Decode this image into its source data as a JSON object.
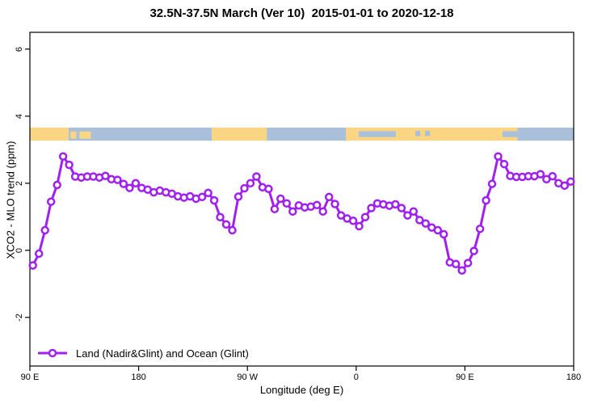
{
  "title": "32.5N-37.5N March (Ver 10)  2015-01-01 to 2020-12-18",
  "legend": {
    "label": "Land (Nadir&Glint) and Ocean (Glint)"
  },
  "colors": {
    "line": "#A020F0",
    "marker_fill": "#ffffff",
    "land": "#F9D584",
    "ocean": "#A9BFDA",
    "axis": "#000000"
  },
  "chart_data": {
    "type": "line",
    "title": "32.5N-37.5N March (Ver 10)  2015-01-01 to 2020-12-18",
    "xlabel": "Longitude (deg E)",
    "ylabel": "XCO2 - MLO trend (ppm)",
    "legend_position": "bottom-left",
    "grid": false,
    "axis": {
      "x_range": [
        90,
        540
      ],
      "y_range": [
        -3.45,
        6.5
      ],
      "x_ticks": [
        {
          "pos": 90,
          "label": "90 E"
        },
        {
          "pos": 180,
          "label": "180"
        },
        {
          "pos": 270,
          "label": "90 W"
        },
        {
          "pos": 360,
          "label": "0"
        },
        {
          "pos": 450,
          "label": "90 E"
        },
        {
          "pos": 540,
          "label": "180"
        }
      ],
      "y_ticks": [
        {
          "pos": -2,
          "label": "-2"
        },
        {
          "pos": 0,
          "label": "0"
        },
        {
          "pos": 2,
          "label": "2"
        },
        {
          "pos": 4,
          "label": "4"
        },
        {
          "pos": 6,
          "label": "6"
        }
      ]
    },
    "series": [
      {
        "name": "Land (Nadir&Glint) and Ocean (Glint)",
        "x_note": "longitude axis wraps: 90E..180..90W..0..90E..180 (values 90..540 plotted, >180 means wrapped)",
        "x": [
          92.5,
          97.5,
          102.5,
          107.5,
          112.5,
          117.5,
          122.5,
          127.5,
          132.5,
          137.5,
          142.5,
          147.5,
          152.5,
          157.5,
          162.5,
          167.5,
          172.5,
          177.5,
          182.5,
          187.5,
          192.5,
          197.5,
          202.5,
          207.5,
          212.5,
          217.5,
          222.5,
          227.5,
          232.5,
          237.5,
          242.5,
          247.5,
          252.5,
          257.5,
          262.5,
          267.5,
          272.5,
          277.5,
          282.5,
          287.5,
          292.5,
          297.5,
          302.5,
          307.5,
          312.5,
          317.5,
          322.5,
          327.5,
          332.5,
          337.5,
          342.5,
          347.5,
          352.5,
          357.5,
          362.5,
          367.5,
          372.5,
          377.5,
          382.5,
          387.5,
          392.5,
          397.5,
          402.5,
          407.5,
          412.5,
          417.5,
          422.5,
          427.5,
          432.5,
          437.5,
          442.5,
          447.5,
          452.5,
          457.5,
          462.5,
          467.5,
          472.5,
          477.5,
          482.5,
          487.5,
          492.5,
          497.5,
          502.5,
          507.5,
          512.5,
          517.5,
          522.5,
          527.5,
          532.5,
          537.5
        ],
        "values": [
          -0.45,
          -0.1,
          0.6,
          1.45,
          1.95,
          2.8,
          2.55,
          2.2,
          2.17,
          2.2,
          2.2,
          2.17,
          2.22,
          2.12,
          2.1,
          1.98,
          1.86,
          2.0,
          1.86,
          1.81,
          1.73,
          1.78,
          1.73,
          1.69,
          1.61,
          1.57,
          1.61,
          1.54,
          1.59,
          1.71,
          1.49,
          0.99,
          0.77,
          0.6,
          1.6,
          1.85,
          2.0,
          2.2,
          1.88,
          1.83,
          1.23,
          1.54,
          1.4,
          1.16,
          1.34,
          1.28,
          1.3,
          1.35,
          1.16,
          1.59,
          1.38,
          1.04,
          0.95,
          0.88,
          0.72,
          0.99,
          1.26,
          1.4,
          1.37,
          1.33,
          1.37,
          1.26,
          1.04,
          1.16,
          0.9,
          0.8,
          0.68,
          0.6,
          0.48,
          -0.36,
          -0.41,
          -0.6,
          -0.38,
          -0.02,
          0.64,
          1.49,
          1.98,
          2.8,
          2.57,
          2.22,
          2.19,
          2.19,
          2.21,
          2.21,
          2.27,
          2.12,
          2.21,
          2.0,
          1.93,
          2.05
        ]
      }
    ],
    "map_strip": {
      "description": "world coastline band at 32.5N-37.5N drawn across top of plot",
      "y_top": 3.66,
      "y_bottom": 3.27,
      "segments": [
        {
          "from": 90,
          "to": 122,
          "type": "land"
        },
        {
          "from": 122,
          "to": 240.5,
          "type": "ocean"
        },
        {
          "from": 123.5,
          "to": 128.5,
          "type": "island"
        },
        {
          "from": 131,
          "to": 140.5,
          "type": "island"
        },
        {
          "from": 240.5,
          "to": 286,
          "type": "land"
        },
        {
          "from": 286,
          "to": 351.5,
          "type": "ocean"
        },
        {
          "from": 351.5,
          "to": 362,
          "type": "land"
        },
        {
          "from": 362,
          "to": 393,
          "type": "mixed"
        },
        {
          "from": 393,
          "to": 481,
          "type": "land"
        },
        {
          "from": 409,
          "to": 413,
          "type": "lake"
        },
        {
          "from": 417,
          "to": 421,
          "type": "lake"
        },
        {
          "from": 481,
          "to": 493.5,
          "type": "mixed"
        },
        {
          "from": 493.5,
          "to": 540,
          "type": "ocean"
        }
      ]
    }
  }
}
